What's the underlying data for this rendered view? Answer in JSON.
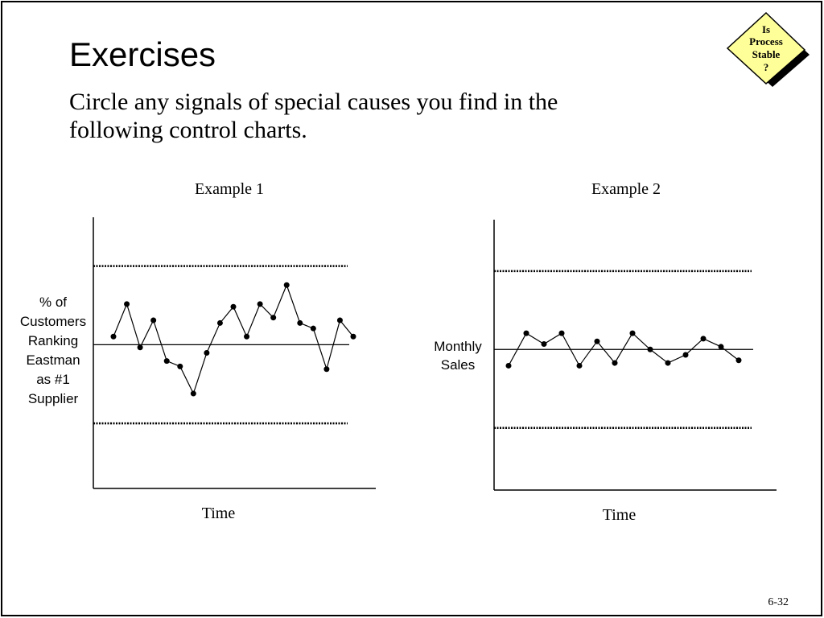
{
  "title": "Exercises",
  "subtitle": [
    "Circle any signals of special causes you find in the",
    "following control charts."
  ],
  "badge": [
    "Is",
    "Process",
    "Stable",
    "?"
  ],
  "page_number": "6-32",
  "chart_data": [
    {
      "type": "line",
      "title": "Example 1",
      "xlabel": "Time",
      "ylabel": [
        "% of",
        "Customers",
        "Ranking",
        "Eastman",
        "as #1",
        "Supplier"
      ],
      "values": [
        56,
        68,
        52,
        62,
        47,
        45,
        35,
        50,
        61,
        67,
        56,
        68,
        63,
        75,
        61,
        59,
        44,
        62,
        56
      ],
      "control_limits": [
        82,
        53,
        24
      ],
      "ylim": [
        0,
        100
      ],
      "color": "#000000"
    },
    {
      "type": "line",
      "title": "Example 2",
      "xlabel": "Time",
      "ylabel": [
        "Monthly",
        "Sales"
      ],
      "values": [
        46,
        58,
        54,
        58,
        46,
        55,
        47,
        58,
        52,
        47,
        50,
        56,
        53,
        48
      ],
      "control_limits": [
        81,
        52,
        23
      ],
      "ylim": [
        0,
        100
      ],
      "color": "#000000"
    }
  ]
}
